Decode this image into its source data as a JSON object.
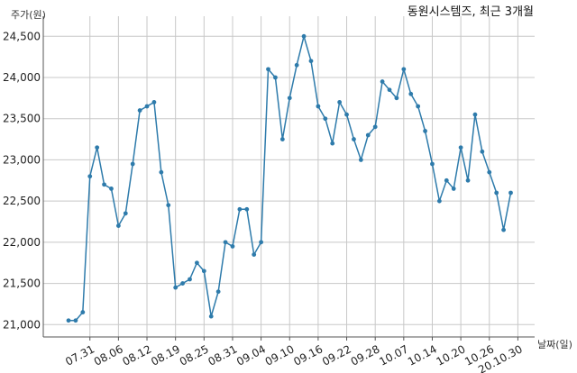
{
  "chart_data": {
    "type": "line",
    "title": "동원시스템즈, 최근 3개월",
    "xlabel": "날짜(일)",
    "ylabel": "주가(원)",
    "ylim": [
      20850,
      24700
    ],
    "yticks": [
      21000,
      21500,
      22000,
      22500,
      23000,
      23500,
      24000,
      24500
    ],
    "ytick_labels": [
      "21,000",
      "21,500",
      "22,000",
      "22,500",
      "23,000",
      "23,500",
      "24,000",
      "24,500"
    ],
    "xticks": [
      {
        "index": 3,
        "label": "07.31"
      },
      {
        "index": 7,
        "label": "08.06"
      },
      {
        "index": 11,
        "label": "08.12"
      },
      {
        "index": 15,
        "label": "08.19"
      },
      {
        "index": 19,
        "label": "08.25"
      },
      {
        "index": 23,
        "label": "08.31"
      },
      {
        "index": 27,
        "label": "09.04"
      },
      {
        "index": 31,
        "label": "09.10"
      },
      {
        "index": 35,
        "label": "09.16"
      },
      {
        "index": 39,
        "label": "09.22"
      },
      {
        "index": 43,
        "label": "09.28"
      },
      {
        "index": 47,
        "label": "10.07"
      },
      {
        "index": 51,
        "label": "10.14"
      },
      {
        "index": 55,
        "label": "10.20"
      },
      {
        "index": 59,
        "label": "10.26"
      },
      {
        "index": 63,
        "label": "20.10.30"
      }
    ],
    "grid": true,
    "line_color": "#2e7bab",
    "series": [
      {
        "values": [
          21050,
          21050,
          21150,
          22800,
          23150,
          22700,
          22650,
          22200,
          22350,
          22950,
          23600,
          23650,
          23700,
          22850,
          22450,
          21450,
          21500,
          21550,
          21750,
          21650,
          21100,
          21400,
          22000,
          21950,
          22400,
          22400,
          21850,
          22000,
          24100,
          24000,
          23250,
          23750,
          24150,
          24500,
          24200,
          23650,
          23500,
          23200,
          23700,
          23550,
          23250,
          23000,
          23300,
          23400,
          23950,
          23850,
          23750,
          24100,
          23800,
          23650,
          23350,
          22950,
          22500,
          22750,
          22650,
          23150,
          22750,
          23550,
          23100,
          22850,
          22600,
          22150,
          22600
        ]
      }
    ]
  }
}
